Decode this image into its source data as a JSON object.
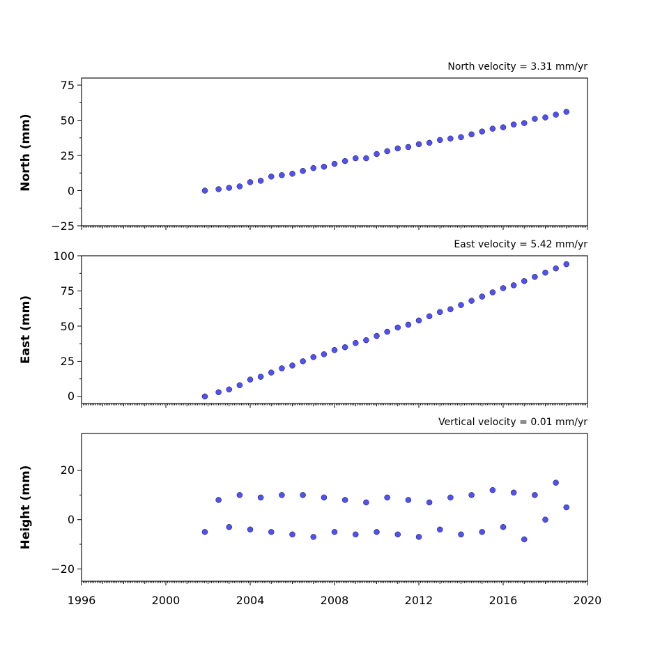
{
  "figure": {
    "x_axis_ticks": [
      "1996",
      "2000",
      "2004",
      "2008",
      "2012",
      "2016",
      "2020"
    ]
  },
  "chart_data": [
    {
      "type": "scatter",
      "title": "North velocity = 3.31 mm/yr",
      "xlabel": "",
      "ylabel": "North (mm)",
      "xlim": [
        1996,
        2020
      ],
      "ylim": [
        -25,
        80
      ],
      "yticks": [
        -25,
        0,
        25,
        50,
        75
      ],
      "ytick_labels": [
        "−25",
        "0",
        "25",
        "50",
        "75"
      ],
      "marker_color": "#5050f8",
      "grid": false,
      "x": [
        2001.85,
        2002.5,
        2003.0,
        2003.5,
        2004.0,
        2004.5,
        2005.0,
        2005.5,
        2006.0,
        2006.5,
        2007.0,
        2007.5,
        2008.0,
        2008.5,
        2009.0,
        2009.5,
        2010.0,
        2010.5,
        2011.0,
        2011.5,
        2012.0,
        2012.5,
        2013.0,
        2013.5,
        2014.0,
        2014.5,
        2015.0,
        2015.5,
        2016.0,
        2016.5,
        2017.0,
        2017.5,
        2018.0,
        2018.5,
        2019.0
      ],
      "y": [
        0,
        1,
        2,
        3,
        6,
        7,
        10,
        11,
        12,
        14,
        16,
        17,
        19,
        21,
        23,
        23,
        26,
        28,
        30,
        31,
        33,
        34,
        36,
        37,
        38,
        40,
        42,
        44,
        45,
        47,
        48,
        51,
        52,
        54,
        56
      ]
    },
    {
      "type": "scatter",
      "title": "East velocity = 5.42 mm/yr",
      "xlabel": "",
      "ylabel": "East (mm)",
      "xlim": [
        1996,
        2020
      ],
      "ylim": [
        -5,
        100
      ],
      "yticks": [
        0,
        25,
        50,
        75,
        100
      ],
      "ytick_labels": [
        "0",
        "25",
        "50",
        "75",
        "100"
      ],
      "marker_color": "#5050f8",
      "grid": false,
      "x": [
        2001.85,
        2002.5,
        2003.0,
        2003.5,
        2004.0,
        2004.5,
        2005.0,
        2005.5,
        2006.0,
        2006.5,
        2007.0,
        2007.5,
        2008.0,
        2008.5,
        2009.0,
        2009.5,
        2010.0,
        2010.5,
        2011.0,
        2011.5,
        2012.0,
        2012.5,
        2013.0,
        2013.5,
        2014.0,
        2014.5,
        2015.0,
        2015.5,
        2016.0,
        2016.5,
        2017.0,
        2017.5,
        2018.0,
        2018.5,
        2019.0
      ],
      "y": [
        0,
        3,
        5,
        8,
        12,
        14,
        17,
        20,
        22,
        25,
        28,
        30,
        33,
        35,
        38,
        40,
        43,
        46,
        49,
        51,
        54,
        57,
        60,
        62,
        65,
        68,
        71,
        74,
        77,
        79,
        82,
        85,
        88,
        91,
        94
      ]
    },
    {
      "type": "scatter",
      "title": "Vertical velocity = 0.01 mm/yr",
      "xlabel": "",
      "ylabel": "Height (mm)",
      "xlim": [
        1996,
        2020
      ],
      "ylim": [
        -25,
        35
      ],
      "yticks": [
        -20,
        0,
        20
      ],
      "ytick_labels": [
        "−20",
        "0",
        "20"
      ],
      "marker_color": "#5050f8",
      "grid": false,
      "x": [
        2001.85,
        2002.5,
        2003.0,
        2003.5,
        2004.0,
        2004.5,
        2005.0,
        2005.5,
        2006.0,
        2006.5,
        2007.0,
        2007.5,
        2008.0,
        2008.5,
        2009.0,
        2009.5,
        2010.0,
        2010.5,
        2011.0,
        2011.5,
        2012.0,
        2012.5,
        2013.0,
        2013.5,
        2014.0,
        2014.5,
        2015.0,
        2015.5,
        2016.0,
        2016.5,
        2017.0,
        2017.5,
        2018.0,
        2018.5,
        2019.0
      ],
      "y": [
        -5,
        8,
        -3,
        10,
        -4,
        9,
        -5,
        10,
        -6,
        10,
        -7,
        9,
        -5,
        8,
        -6,
        7,
        -5,
        9,
        -6,
        8,
        -7,
        7,
        -4,
        9,
        -6,
        10,
        -5,
        12,
        -3,
        11,
        -8,
        10,
        0,
        15,
        5
      ]
    }
  ]
}
